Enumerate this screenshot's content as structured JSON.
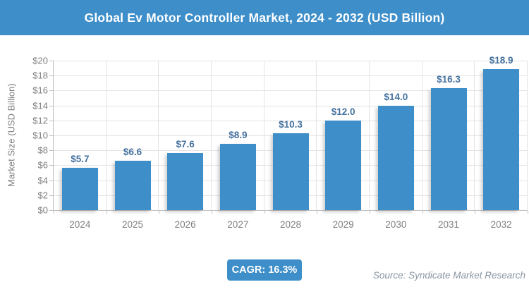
{
  "title": "Global Ev Motor Controller Market, 2024 - 2032 (USD Billion)",
  "chart_data": {
    "type": "bar",
    "title": "Global Ev Motor Controller Market, 2024 - 2032 (USD Billion)",
    "categories": [
      "2024",
      "2025",
      "2026",
      "2027",
      "2028",
      "2029",
      "2030",
      "2031",
      "2032"
    ],
    "values": [
      5.7,
      6.6,
      7.6,
      8.9,
      10.3,
      12.0,
      14.0,
      16.3,
      18.9
    ],
    "value_labels": [
      "$5.7",
      "$6.6",
      "$7.6",
      "$8.9",
      "$10.3",
      "$12.0",
      "$14.0",
      "$16.3",
      "$18.9"
    ],
    "xlabel": "",
    "ylabel": "Market Size (USD Billion)",
    "ylim": [
      0,
      20
    ],
    "ytick_step": 2,
    "ytick_labels": [
      "$0",
      "$2",
      "$4",
      "$6",
      "$8",
      "$10",
      "$12",
      "$14",
      "$16",
      "$18",
      "$20"
    ],
    "grid": true,
    "legend": false
  },
  "footer": {
    "cagr_label": "CAGR: 16.3%",
    "source": "Source: Syndicate Market Research"
  },
  "colors": {
    "accent_blue": "#3d8ec9",
    "bar": "#3d8ec9",
    "data_label": "#44719e",
    "axis_text": "#7f7f7f",
    "grid": "#e4e4e4",
    "source_text": "#8b96a2"
  }
}
